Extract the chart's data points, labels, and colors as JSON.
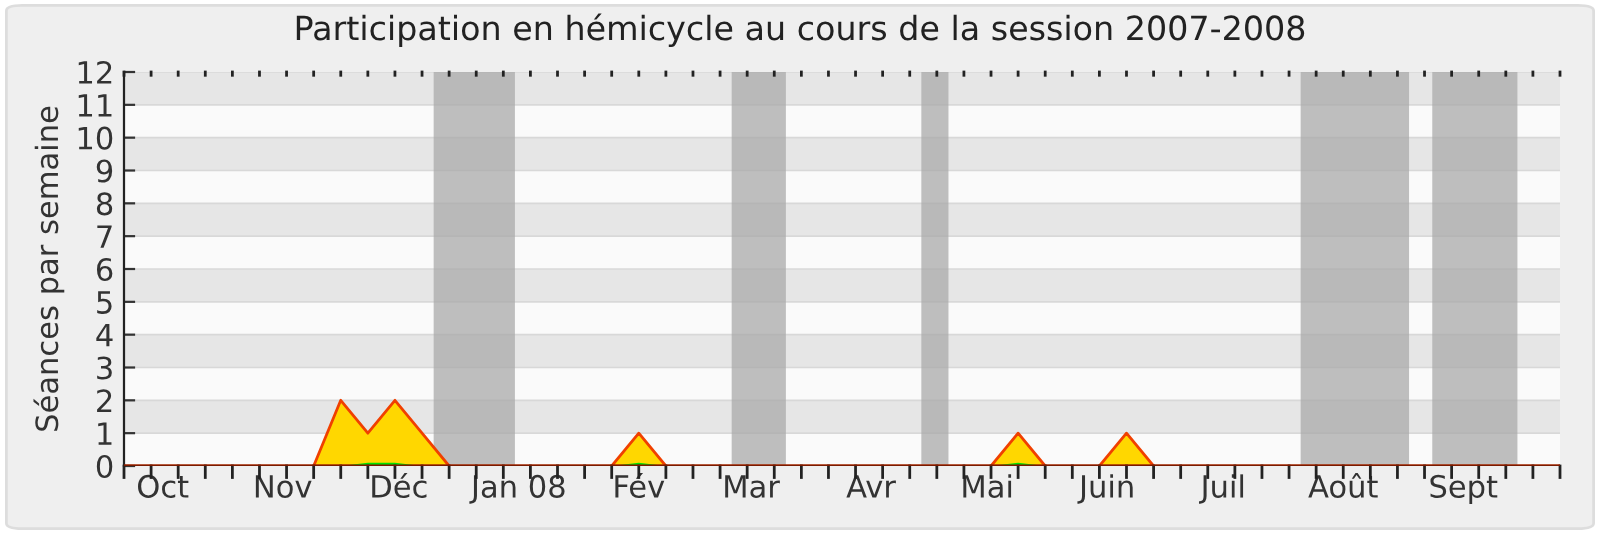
{
  "chart_data": {
    "type": "area",
    "title": "Participation en hémicycle au cours de la session 2007-2008",
    "ylabel": "Séances par semaine",
    "x": [
      "2007-10-05",
      "2007-10-12",
      "2007-10-19",
      "2007-10-26",
      "2007-11-02",
      "2007-11-09",
      "2007-11-16",
      "2007-11-23",
      "2007-11-30",
      "2007-12-07",
      "2007-12-14",
      "2007-12-21",
      "2007-12-28",
      "2008-01-04",
      "2008-01-11",
      "2008-01-18",
      "2008-01-25",
      "2008-02-01",
      "2008-02-08",
      "2008-02-15",
      "2008-02-22",
      "2008-02-29",
      "2008-03-07",
      "2008-03-14",
      "2008-03-21",
      "2008-03-28",
      "2008-04-04",
      "2008-04-11",
      "2008-04-18",
      "2008-04-25",
      "2008-05-02",
      "2008-05-09",
      "2008-05-16",
      "2008-05-23",
      "2008-05-30",
      "2008-06-06",
      "2008-06-13",
      "2008-06-20",
      "2008-06-27",
      "2008-07-04",
      "2008-07-11",
      "2008-07-18",
      "2008-07-25",
      "2008-08-01",
      "2008-08-08",
      "2008-08-15",
      "2008-08-22",
      "2008-08-29",
      "2008-09-05",
      "2008-09-12",
      "2008-09-19",
      "2008-09-26",
      "2008-10-03",
      "2008-10-10"
    ],
    "series": [
      {
        "color": "#ffd700",
        "values": [
          0,
          0,
          0,
          0,
          0,
          0,
          0,
          0,
          2,
          1,
          2,
          1,
          0,
          0,
          0,
          0,
          0,
          0,
          0,
          1,
          0,
          0,
          0,
          0,
          0,
          0,
          0,
          0,
          0,
          0,
          0,
          0,
          0,
          1,
          0,
          0,
          0,
          1,
          0,
          0,
          0,
          0,
          0,
          0,
          0,
          0,
          0,
          0,
          0,
          0,
          0,
          0,
          0,
          0
        ]
      },
      {
        "color": "#00e000",
        "values": [
          0,
          0,
          0,
          0,
          0,
          0,
          0,
          0,
          0,
          0.1,
          0.1,
          0,
          0,
          0,
          0,
          0,
          0,
          0,
          0,
          0.1,
          0,
          0,
          0,
          0,
          0,
          0,
          0,
          0,
          0,
          0,
          0,
          0,
          0,
          0.1,
          0,
          0,
          0,
          0,
          0,
          0,
          0,
          0,
          0,
          0,
          0,
          0,
          0,
          0,
          0,
          0,
          0,
          0,
          0,
          0
        ]
      }
    ],
    "bands": [
      {
        "axis": "x",
        "from": "2007-12-24",
        "to": "2008-01-14",
        "color": "#aaaaaa"
      },
      {
        "axis": "x",
        "from": "2008-03-10",
        "to": "2008-03-24",
        "color": "#aaaaaa"
      },
      {
        "axis": "x",
        "from": "2008-04-28",
        "to": "2008-05-05",
        "color": "#aaaaaa"
      },
      {
        "axis": "x",
        "from": "2008-08-04",
        "to": "2008-09-01",
        "color": "#aaaaaa"
      },
      {
        "axis": "x",
        "from": "2008-09-07",
        "to": "2008-09-29",
        "color": "#aaaaaa"
      }
    ],
    "xlim": [
      "2007-10-05",
      "2008-10-10"
    ],
    "xticks": [
      {
        "value": "2007-10-15",
        "label": "Oct"
      },
      {
        "value": "2007-11-15",
        "label": "Nov"
      },
      {
        "value": "2007-12-15",
        "label": "Déc"
      },
      {
        "value": "2008-01-15",
        "label": "Jan 08"
      },
      {
        "value": "2008-02-15",
        "label": "Fév"
      },
      {
        "value": "2008-03-15",
        "label": "Mar"
      },
      {
        "value": "2008-04-15",
        "label": "Avr"
      },
      {
        "value": "2008-05-15",
        "label": "Mai"
      },
      {
        "value": "2008-06-15",
        "label": "Juin"
      },
      {
        "value": "2008-07-15",
        "label": "Juil"
      },
      {
        "value": "2008-08-15",
        "label": "Août"
      },
      {
        "value": "2008-09-15",
        "label": "Sept"
      }
    ],
    "ylim": [
      0,
      12
    ],
    "yticks": [
      0,
      1,
      2,
      3,
      4,
      5,
      6,
      7,
      8,
      9,
      10,
      11,
      12
    ],
    "grid": "y"
  }
}
